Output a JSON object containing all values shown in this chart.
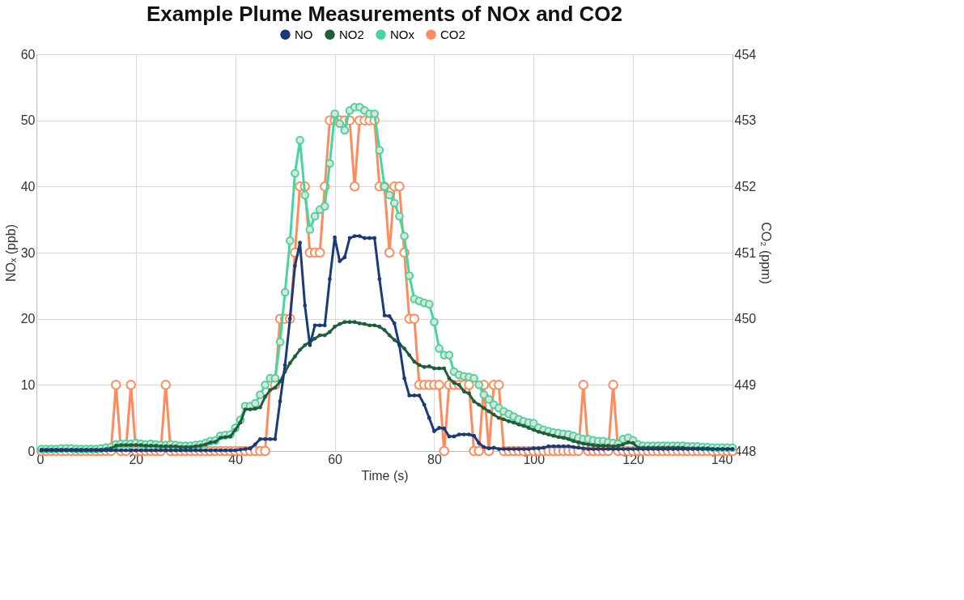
{
  "chart_data": {
    "type": "line",
    "title": "Example Plume Measurements of NOx and CO2",
    "xlabel": "Time (s)",
    "ylabel": "NOₓ (ppb)",
    "y2label": "CO₂ (ppm)",
    "x": [
      1,
      2,
      3,
      4,
      5,
      6,
      7,
      8,
      9,
      10,
      11,
      12,
      13,
      14,
      15,
      16,
      17,
      18,
      19,
      20,
      21,
      22,
      23,
      24,
      25,
      26,
      27,
      28,
      29,
      30,
      31,
      32,
      33,
      34,
      35,
      36,
      37,
      38,
      39,
      40,
      41,
      42,
      43,
      44,
      45,
      46,
      47,
      48,
      49,
      50,
      51,
      52,
      53,
      54,
      55,
      56,
      57,
      58,
      59,
      60,
      61,
      62,
      63,
      64,
      65,
      66,
      67,
      68,
      69,
      70,
      71,
      72,
      73,
      74,
      75,
      76,
      77,
      78,
      79,
      80,
      81,
      82,
      83,
      84,
      85,
      86,
      87,
      88,
      89,
      90,
      91,
      92,
      93,
      94,
      95,
      96,
      97,
      98,
      99,
      100,
      101,
      102,
      103,
      104,
      105,
      106,
      107,
      108,
      109,
      110,
      111,
      112,
      113,
      114,
      115,
      116,
      117,
      118,
      119,
      120,
      121,
      122,
      123,
      124,
      125,
      126,
      127,
      128,
      129,
      130,
      131,
      132,
      133,
      134,
      135,
      136,
      137,
      138,
      139,
      140
    ],
    "series": [
      {
        "name": "NO",
        "color": "#1b3a78",
        "values": [
          0.1,
          0.1,
          0.1,
          0.1,
          0.1,
          0.1,
          0.1,
          0.1,
          0.1,
          0.1,
          0.1,
          0.1,
          0.1,
          0.1,
          0.1,
          0.1,
          0.1,
          0.1,
          0.1,
          0.1,
          0.1,
          0.1,
          0.1,
          0.1,
          0.1,
          0.1,
          0.1,
          0.1,
          0.1,
          0.1,
          0.1,
          0.1,
          0.1,
          0.1,
          0.1,
          0.1,
          0.1,
          0.1,
          0.1,
          0.1,
          0.2,
          0.3,
          0.4,
          1,
          1.8,
          1.8,
          1.8,
          1.8,
          7.5,
          13,
          20,
          28,
          31.5,
          22,
          16,
          19,
          19,
          19,
          26,
          32.3,
          28.7,
          29.3,
          32.2,
          32.5,
          32.5,
          32.2,
          32.2,
          32.2,
          26,
          20.5,
          20.4,
          19.3,
          16,
          11,
          8.4,
          8.4,
          8.4,
          7,
          5,
          3,
          3.5,
          3.4,
          2.2,
          2.2,
          2.5,
          2.5,
          2.5,
          2.3,
          1.2,
          0.6,
          0.4,
          0.5,
          0.3,
          0.3,
          0.3,
          0.3,
          0.3,
          0.3,
          0.3,
          0.4,
          0.4,
          0.5,
          0.7,
          0.7,
          0.7,
          0.7,
          0.7,
          0.6,
          0.5,
          0.4,
          0.3,
          0.3,
          0.3,
          0.3,
          0.3,
          0.3,
          0.3,
          0.3,
          0.3,
          0.3,
          0.3,
          0.3,
          0.3,
          0.3,
          0.3,
          0.3,
          0.3,
          0.3,
          0.3,
          0.3,
          0.3,
          0.3,
          0.3,
          0.3,
          0.3,
          0.3,
          0.3,
          0.3,
          0.3,
          0.3
        ]
      },
      {
        "name": "NO2",
        "color": "#1e5e3b",
        "values": [
          0.2,
          0.2,
          0.2,
          0.2,
          0.2,
          0.2,
          0.2,
          0.2,
          0.2,
          0.2,
          0.2,
          0.2,
          0.2,
          0.3,
          0.4,
          0.8,
          0.9,
          0.9,
          0.9,
          0.9,
          0.9,
          0.8,
          0.8,
          0.8,
          0.7,
          0.7,
          0.7,
          0.7,
          0.6,
          0.6,
          0.6,
          0.7,
          0.8,
          1,
          1.3,
          1.4,
          2,
          2.1,
          2.2,
          3.2,
          4.3,
          6.3,
          6.3,
          6.4,
          6.6,
          8.2,
          9.2,
          9.6,
          10.5,
          12,
          13.3,
          14.3,
          15.3,
          16,
          16.5,
          17,
          17.5,
          17.5,
          18,
          18.8,
          19.2,
          19.5,
          19.5,
          19.5,
          19.3,
          19.2,
          19,
          19,
          18.8,
          18.3,
          17.5,
          16.8,
          16.2,
          15.5,
          14.5,
          13.5,
          13,
          12.7,
          12.8,
          12.5,
          12.5,
          12.5,
          11,
          10.3,
          10,
          9,
          8.7,
          7.5,
          7,
          6.5,
          6,
          5.5,
          5,
          4.8,
          4.5,
          4.3,
          4,
          3.8,
          3.5,
          3.2,
          2.9,
          2.7,
          2.5,
          2.3,
          2.1,
          2,
          1.8,
          1.5,
          1.3,
          1.1,
          1,
          0.9,
          0.8,
          0.8,
          0.8,
          0.7,
          0.8,
          1,
          1.3,
          1.2,
          0.5,
          0.5,
          0.5,
          0.5,
          0.5,
          0.5,
          0.5,
          0.5,
          0.5,
          0.5,
          0.4,
          0.4,
          0.4,
          0.4,
          0.4,
          0.3,
          0.3,
          0.3,
          0.3,
          0.3
        ]
      },
      {
        "name": "NOx",
        "color": "#45d69e",
        "values": [
          0.3,
          0.3,
          0.3,
          0.3,
          0.4,
          0.4,
          0.4,
          0.3,
          0.3,
          0.3,
          0.3,
          0.3,
          0.4,
          0.5,
          0.6,
          1,
          1.1,
          1.1,
          1.1,
          1.2,
          1.1,
          1,
          1.1,
          1,
          0.9,
          0.9,
          1,
          0.9,
          0.8,
          0.8,
          0.8,
          0.9,
          1,
          1.2,
          1.5,
          1.6,
          2.3,
          2.4,
          2.5,
          3.5,
          4.7,
          6.8,
          6.8,
          7.2,
          8.5,
          10,
          11,
          11,
          16.5,
          24,
          31.8,
          42,
          47,
          38.7,
          33.5,
          35.5,
          36.5,
          37,
          43.5,
          51,
          49.5,
          48.5,
          51.5,
          52,
          52,
          51.5,
          51,
          51,
          45.5,
          40,
          38.7,
          37.5,
          35.5,
          32.5,
          26.5,
          23,
          22.7,
          22.4,
          22.2,
          19.5,
          15.5,
          14.5,
          14.5,
          12,
          11.5,
          11.3,
          11.2,
          11,
          10,
          8.5,
          7.8,
          7,
          6.5,
          6,
          5.6,
          5.2,
          4.8,
          4.5,
          4.3,
          4.2,
          3.5,
          3.2,
          3,
          2.8,
          2.7,
          2.6,
          2.5,
          2.3,
          2,
          1.8,
          1.8,
          1.6,
          1.5,
          1.5,
          1.3,
          1.2,
          1.1,
          1.8,
          2,
          1.6,
          1,
          0.8,
          0.8,
          0.8,
          0.8,
          0.8,
          0.8,
          0.8,
          0.8,
          0.8,
          0.7,
          0.7,
          0.7,
          0.6,
          0.6,
          0.5,
          0.5,
          0.5,
          0.5,
          0.5
        ]
      },
      {
        "name": "CO2",
        "color": "#ff8b5c",
        "axis": "y2",
        "values": [
          448,
          448,
          448,
          448,
          448,
          448,
          448,
          448,
          448,
          448,
          448,
          448,
          448,
          448,
          448,
          449,
          448,
          448,
          449,
          448,
          448,
          448,
          448,
          448,
          448,
          449,
          448,
          448,
          448,
          448,
          448,
          448,
          448,
          448,
          448,
          448,
          448,
          448,
          448,
          448,
          448,
          448,
          448,
          448,
          448,
          448,
          449,
          449,
          450,
          450,
          450,
          451,
          452,
          452,
          451,
          451,
          451,
          452,
          453,
          453,
          453,
          453,
          453,
          452,
          453,
          453,
          453,
          453,
          452,
          452,
          451,
          452,
          452,
          451,
          450,
          450,
          449,
          449,
          449,
          449,
          449,
          448,
          449,
          449,
          449,
          449,
          449,
          448,
          448,
          449,
          448,
          449,
          449,
          448,
          448,
          448,
          448,
          448,
          448,
          448,
          448,
          448,
          448,
          448,
          448,
          448,
          448,
          448,
          448,
          449,
          448,
          448,
          448,
          448,
          448,
          449,
          448,
          448,
          448,
          448,
          448,
          448,
          448,
          448,
          448,
          448,
          448,
          448,
          448,
          448,
          448,
          448,
          448,
          448,
          448,
          448,
          448,
          448,
          448,
          448
        ]
      }
    ],
    "xlim": [
      0,
      140
    ],
    "xticks": [
      0,
      20,
      40,
      60,
      80,
      100,
      120,
      140
    ],
    "ylim": [
      0,
      60
    ],
    "yticks": [
      0,
      10,
      20,
      30,
      40,
      50,
      60
    ],
    "y2lim": [
      448,
      454
    ],
    "y2ticks": [
      448,
      449,
      450,
      451,
      452,
      453,
      454
    ],
    "grid": true,
    "legend": "top",
    "marker": "circle"
  }
}
